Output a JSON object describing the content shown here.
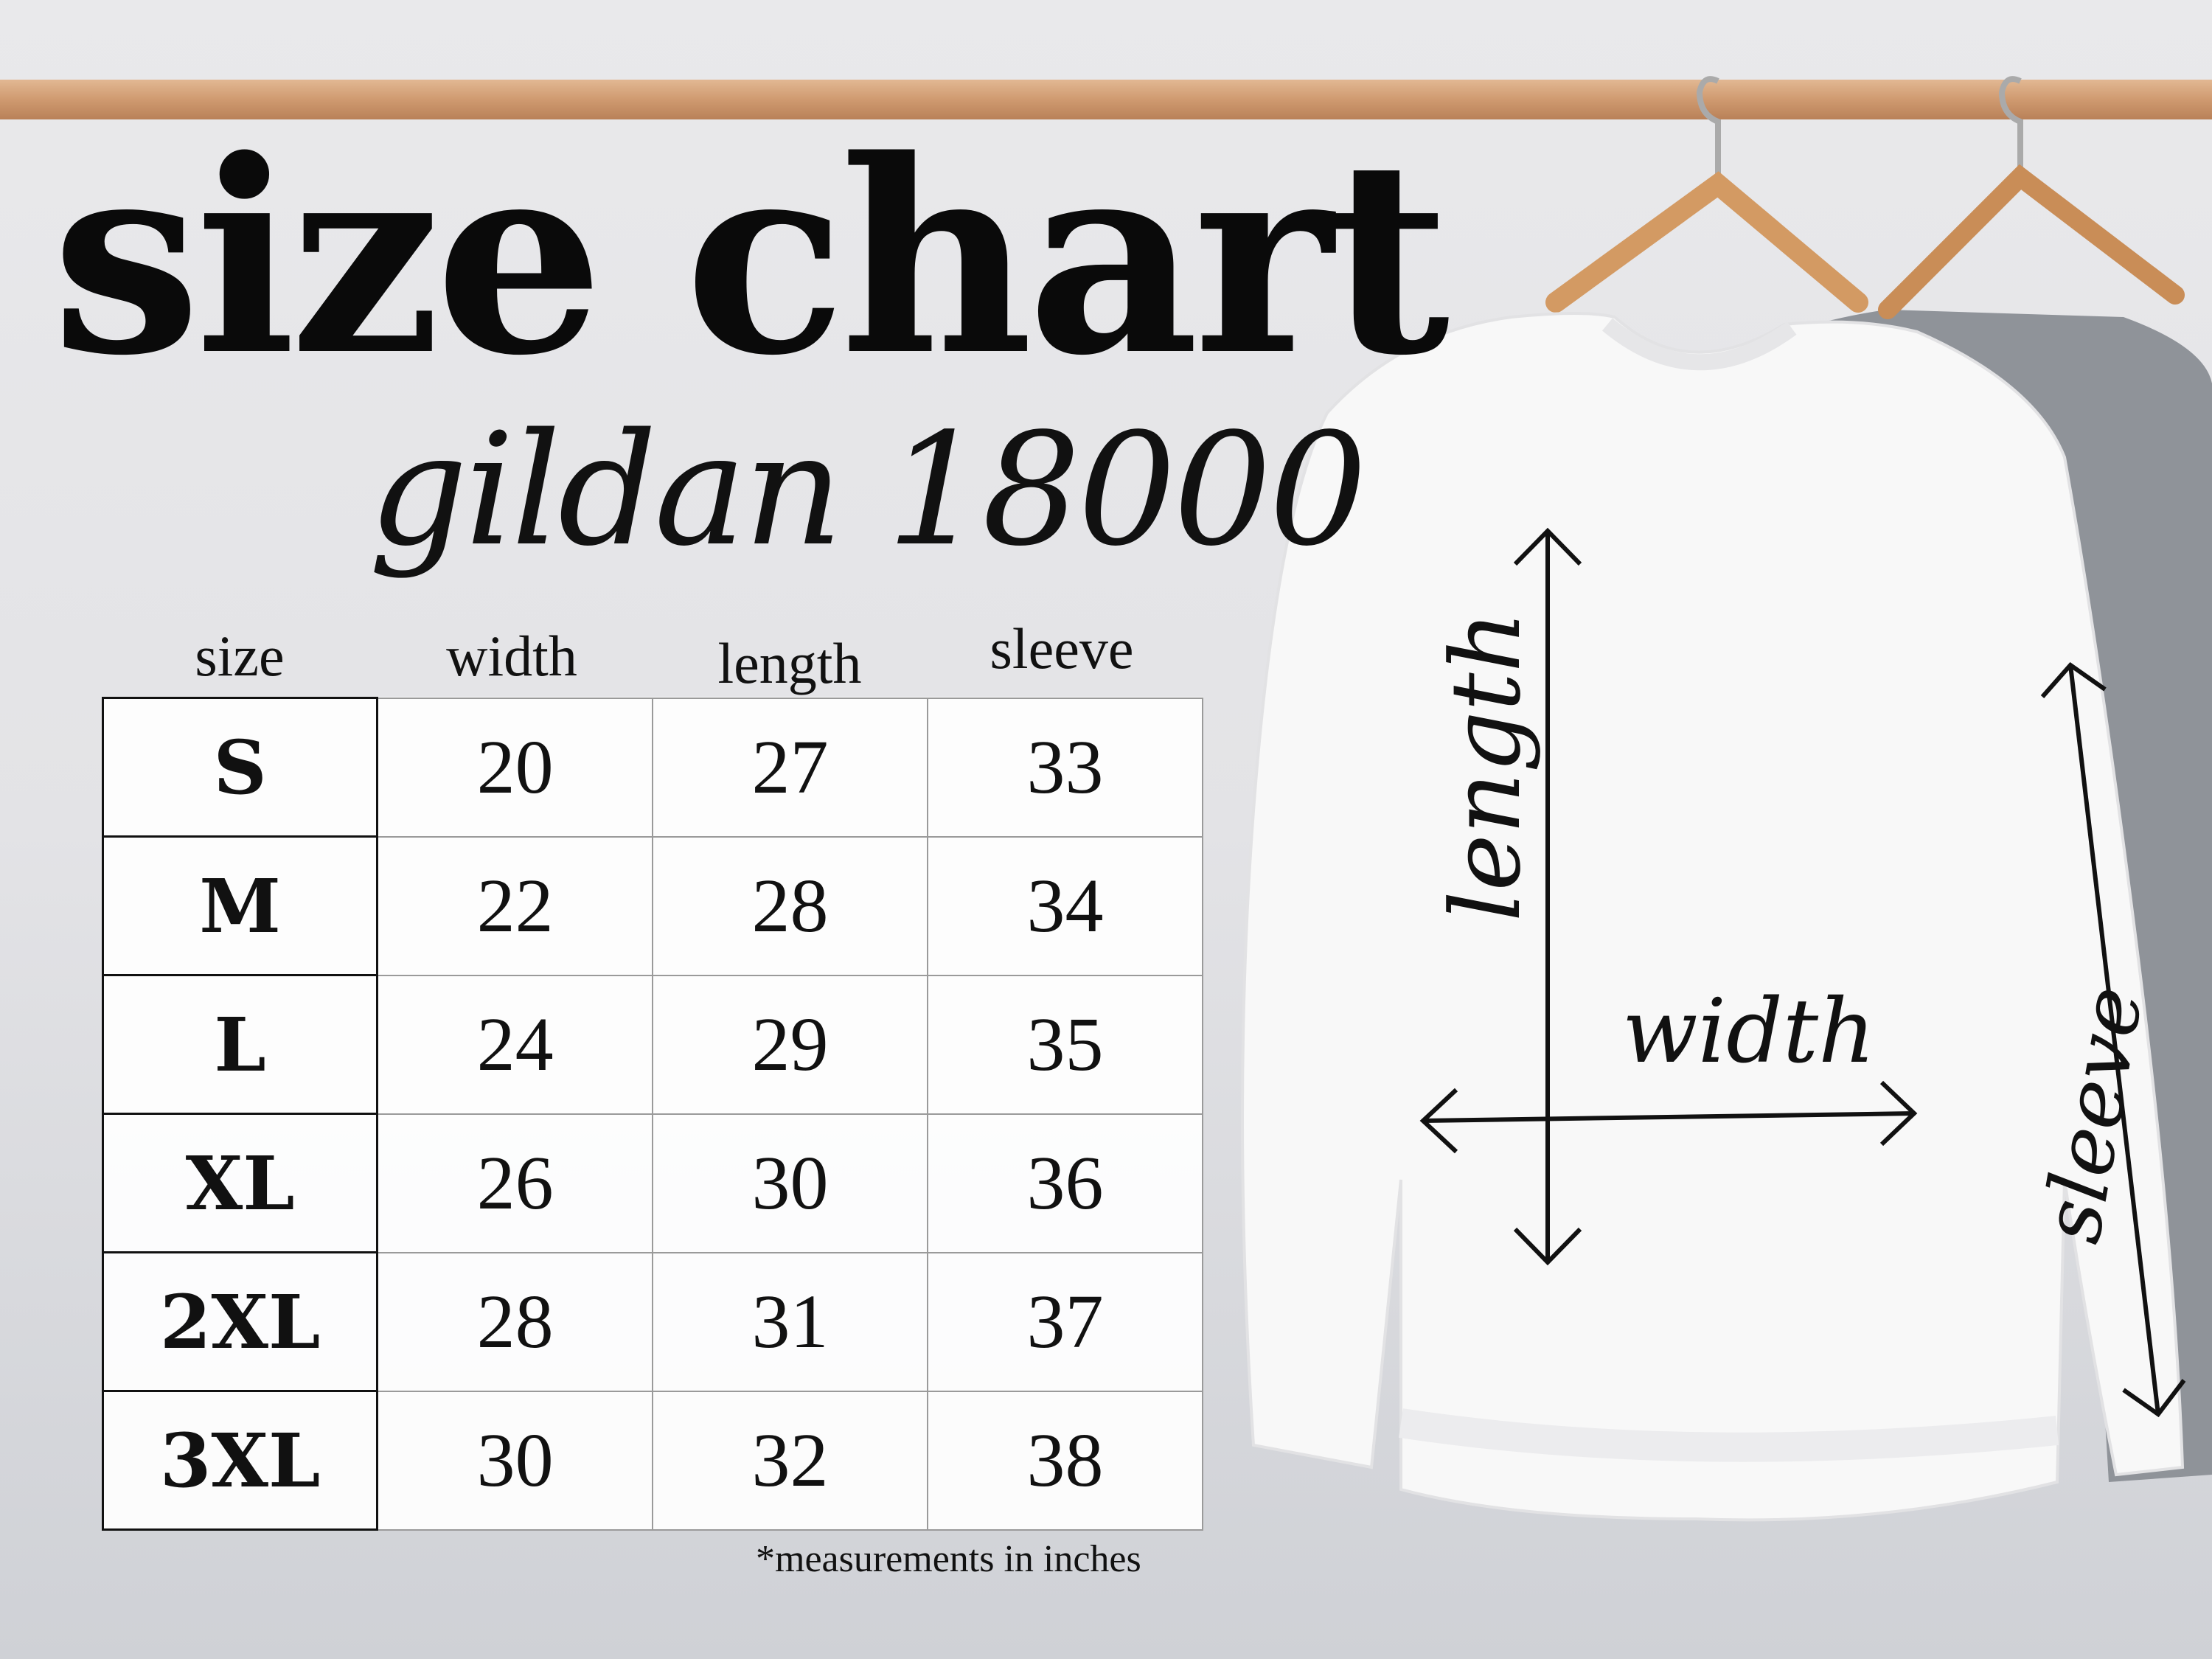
{
  "title": "size chart",
  "subtitle": "gildan 18000",
  "table": {
    "headers": [
      "size",
      "width",
      "length",
      "sleeve"
    ],
    "rows": [
      [
        "S",
        "20",
        "27",
        "33"
      ],
      [
        "M",
        "22",
        "28",
        "34"
      ],
      [
        "L",
        "24",
        "29",
        "35"
      ],
      [
        "XL",
        "26",
        "30",
        "36"
      ],
      [
        "2XL",
        "28",
        "31",
        "37"
      ],
      [
        "3XL",
        "30",
        "32",
        "38"
      ]
    ]
  },
  "footnote": "*measurements in inches",
  "diagram": {
    "length_label": "length",
    "width_label": "width",
    "sleeve_label": "sleeve"
  }
}
